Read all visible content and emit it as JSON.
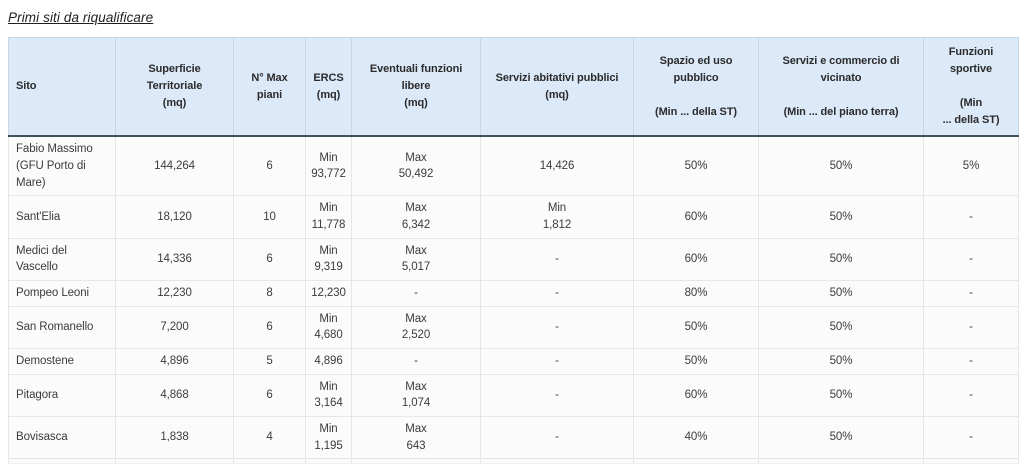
{
  "page": {
    "title": "Primi siti da riqualificare"
  },
  "table": {
    "columns": [
      {
        "key": "sito",
        "label": "Sito"
      },
      {
        "key": "superficie-territoriale",
        "label": "Superficie\nTerritoriale\n(mq)"
      },
      {
        "key": "n-max-piani",
        "label": "N° Max\npiani"
      },
      {
        "key": "ercs",
        "label": "ERCS\n(mq)"
      },
      {
        "key": "eventuali-funzioni-libere",
        "label": "Eventuali funzioni\nlibere\n(mq)"
      },
      {
        "key": "servizi-abitativi-pubblici",
        "label": "Servizi abitativi pubblici\n(mq)"
      },
      {
        "key": "spazio-ed-uso-pubblico",
        "label": "Spazio ed uso\npubblico\n\n(Min ... della ST)"
      },
      {
        "key": "servizi-e-commercio",
        "label": "Servizi e commercio di\nvicinato\n\n(Min ... del piano terra)"
      },
      {
        "key": "funzioni-sportive",
        "label": "Funzioni\nsportive\n\n(Min\n... della ST)"
      }
    ],
    "rows": [
      [
        "Fabio Massimo (GFU Porto di Mare)",
        "144,264",
        "6",
        "Min\n93,772",
        "Max\n50,492",
        "14,426",
        "50%",
        "50%",
        "5%"
      ],
      [
        "Sant'Elia",
        "18,120",
        "10",
        "Min\n11,778",
        "Max\n6,342",
        "Min\n1,812",
        "60%",
        "50%",
        "-"
      ],
      [
        "Medici del Vascello",
        "14,336",
        "6",
        "Min\n9,319",
        "Max\n5,017",
        "-",
        "60%",
        "50%",
        "-"
      ],
      [
        "Pompeo Leoni",
        "12,230",
        "8",
        "12,230",
        "-",
        "-",
        "80%",
        "50%",
        "-"
      ],
      [
        "San Romanello",
        "7,200",
        "6",
        "Min\n4,680",
        "Max\n2,520",
        "-",
        "50%",
        "50%",
        "-"
      ],
      [
        "Demostene",
        "4,896",
        "5",
        "4,896",
        "-",
        "-",
        "50%",
        "50%",
        "-"
      ],
      [
        "Pitagora",
        "4,868",
        "6",
        "Min\n3,164",
        "Max\n1,074",
        "-",
        "60%",
        "50%",
        "-"
      ],
      [
        "Bovisasca",
        "1,838",
        "4",
        "Min\n1,195",
        "Max\n643",
        "-",
        "40%",
        "50%",
        "-"
      ]
    ],
    "colors": {
      "header_background": "#dce9f9",
      "header_bottom_border": "#3f5258",
      "cell_background": "#fbfbfb",
      "grid_line": "#e6e6e6",
      "text": "#3c3c3c"
    }
  }
}
